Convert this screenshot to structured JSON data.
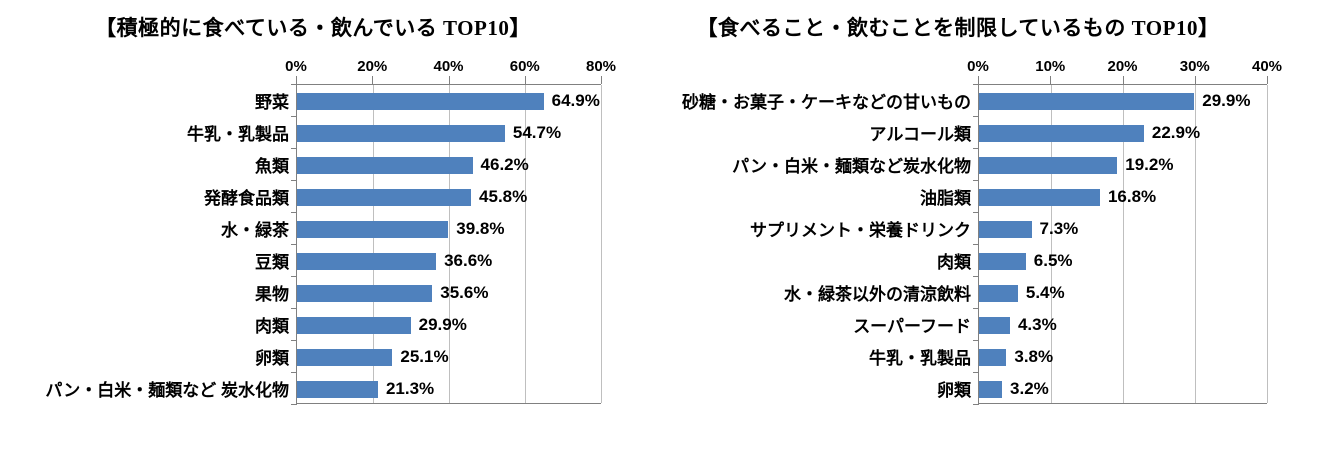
{
  "chart_data": [
    {
      "type": "bar",
      "orientation": "horizontal",
      "title": "【積極的に食べている・飲んでいる TOP10】",
      "categories": [
        "野菜",
        "牛乳・乳製品",
        "魚類",
        "発酵食品類",
        "水・緑茶",
        "豆類",
        "果物",
        "肉類",
        "卵類",
        "パン・白米・麺類など 炭水化物"
      ],
      "values": [
        64.9,
        54.7,
        46.2,
        45.8,
        39.8,
        36.6,
        35.6,
        29.9,
        25.1,
        21.3
      ],
      "value_labels": [
        "64.9%",
        "54.7%",
        "46.2%",
        "45.8%",
        "39.8%",
        "36.6%",
        "35.6%",
        "29.9%",
        "25.1%",
        "21.3%"
      ],
      "x_ticks": [
        "0%",
        "20%",
        "40%",
        "60%",
        "80%"
      ],
      "xlim": [
        0,
        80
      ],
      "bar_color": "#4f81bd",
      "gridlines": true,
      "legend": "none"
    },
    {
      "type": "bar",
      "orientation": "horizontal",
      "title": "【食べること・飲むことを制限しているもの TOP10】",
      "categories": [
        "砂糖・お菓子・ケーキなどの甘いもの",
        "アルコール類",
        "パン・白米・麺類など炭水化物",
        "油脂類",
        "サプリメント・栄養ドリンク",
        "肉類",
        "水・緑茶以外の清涼飲料",
        "スーパーフード",
        "牛乳・乳製品",
        "卵類"
      ],
      "values": [
        29.9,
        22.9,
        19.2,
        16.8,
        7.3,
        6.5,
        5.4,
        4.3,
        3.8,
        3.2
      ],
      "value_labels": [
        "29.9%",
        "22.9%",
        "19.2%",
        "16.8%",
        "7.3%",
        "6.5%",
        "5.4%",
        "4.3%",
        "3.8%",
        "3.2%"
      ],
      "x_ticks": [
        "0%",
        "10%",
        "20%",
        "30%",
        "40%"
      ],
      "xlim": [
        0,
        40
      ],
      "bar_color": "#4f81bd",
      "gridlines": true,
      "legend": "none"
    }
  ]
}
